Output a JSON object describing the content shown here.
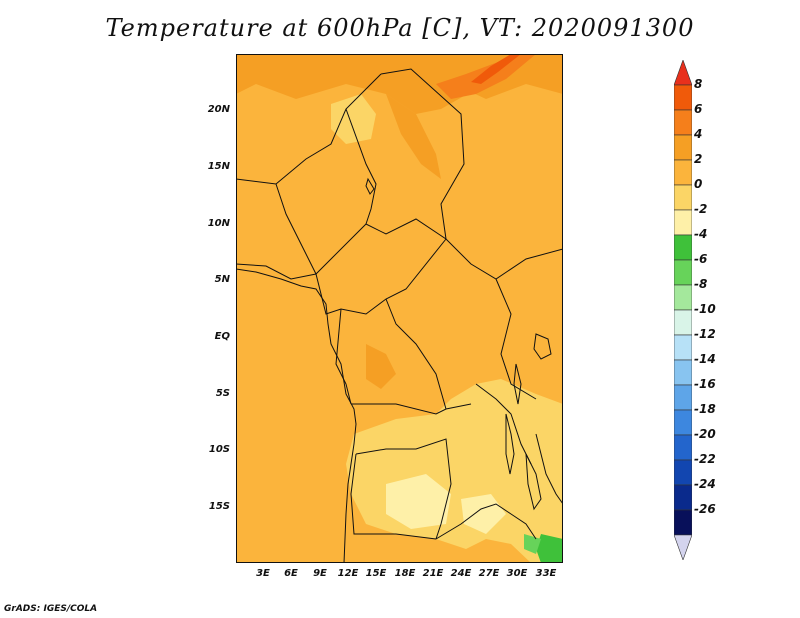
{
  "title": "Temperature at 600hPa [C], VT: 2020091300",
  "credit": "GrADS: IGES/COLA",
  "map": {
    "lat_labels": [
      "20N",
      "15N",
      "10N",
      "5N",
      "EQ",
      "5S",
      "10S",
      "15S"
    ],
    "lon_labels": [
      "3E",
      "6E",
      "9E",
      "12E",
      "15E",
      "18E",
      "21E",
      "24E",
      "27E",
      "30E",
      "33E"
    ]
  },
  "colorbar": {
    "labels": [
      "8",
      "6",
      "4",
      "2",
      "0",
      "-2",
      "-4",
      "-6",
      "-8",
      "-10",
      "-12",
      "-14",
      "-16",
      "-18",
      "-20",
      "-22",
      "-24",
      "-26"
    ],
    "colors": [
      "#e8301c",
      "#f05a0a",
      "#f57f1b",
      "#f59f24",
      "#fbb43c",
      "#fbd566",
      "#fef0a8",
      "#3fc13a",
      "#67d35a",
      "#a4e89c",
      "#d9f4e8",
      "#b7e1f7",
      "#88c4f0",
      "#5ea5e8",
      "#3d87df",
      "#2365cc",
      "#1246b0",
      "#0a2a8c",
      "#08105a",
      "#d4d4ee"
    ]
  }
}
